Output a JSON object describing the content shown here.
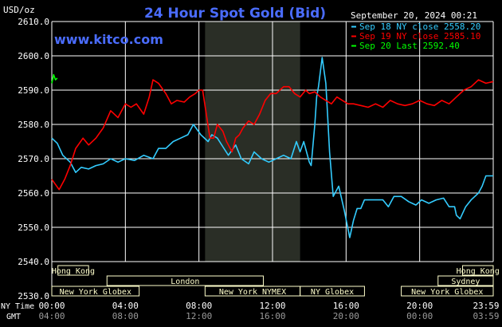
{
  "header": {
    "unit": "USD/oz",
    "title": "24 Hour Spot Gold (Bid)",
    "date": "September 20, 2024 00:21",
    "website": "www.kitco.com"
  },
  "legend": {
    "position": "top-right",
    "items": [
      {
        "label": "Sep 18 NY close 2558.20",
        "color": "#33ccff"
      },
      {
        "label": "Sep 19 NY close 2585.10",
        "color": "#ff0000"
      },
      {
        "label": "Sep 20 Last 2592.40",
        "color": "#00ff00"
      }
    ]
  },
  "markets": [
    {
      "name": "Hong Kong",
      "row": 0,
      "start": 0.333,
      "end": 2.0
    },
    {
      "name": "Hong Kong",
      "row": 0,
      "start": 22.333,
      "end": 24.0
    },
    {
      "name": "London",
      "row": 1,
      "start": 3.0,
      "end": 11.5
    },
    {
      "name": "Sydney",
      "row": 1,
      "start": 21.0,
      "end": 24.0
    },
    {
      "name": "New York Globex",
      "row": 2,
      "start": 0.0,
      "end": 4.75
    },
    {
      "name": "New York NYMEX",
      "row": 2,
      "start": 8.333,
      "end": 13.5
    },
    {
      "name": "NY Globex",
      "row": 2,
      "start": 13.5,
      "end": 17.0
    },
    {
      "name": "New York Globex",
      "row": 2,
      "start": 19.0,
      "end": 24.0
    }
  ],
  "time_axis": {
    "ny_label": "NY Time",
    "gmt_label": "GMT",
    "ny_ticks": [
      "00:00",
      "04:00",
      "08:00",
      "12:00",
      "16:00",
      "20:00",
      "23:59"
    ],
    "gmt_ticks": [
      "04:00",
      "08:00",
      "12:00",
      "16:00",
      "20:00",
      "00:00",
      "03:59"
    ]
  },
  "colors": {
    "background": "#000000",
    "grid": "#ffffff",
    "highlight": "#2a2e26",
    "title": "#4a6cff",
    "market_box": "#ffffcc"
  },
  "chart_data": {
    "type": "line",
    "title": "24 Hour Spot Gold (Bid)",
    "xlabel": "NY Time",
    "ylabel": "USD/oz",
    "xlim": [
      0,
      24
    ],
    "ylim": [
      2530,
      2610
    ],
    "yticks": [
      2530.0,
      2540.0,
      2550.0,
      2560.0,
      2570.0,
      2580.0,
      2590.0,
      2600.0,
      2610.0
    ],
    "grid": true,
    "highlight_hours": [
      8.333,
      13.5
    ],
    "series": [
      {
        "name": "Sep 18 NY close 2558.20",
        "color": "#33ccff",
        "x": [
          0.0,
          0.3,
          0.6,
          1.0,
          1.3,
          1.6,
          2.0,
          2.4,
          2.8,
          3.2,
          3.6,
          4.0,
          4.5,
          5.0,
          5.5,
          5.8,
          6.2,
          6.6,
          7.0,
          7.4,
          7.7,
          8.1,
          8.5,
          8.7,
          9.0,
          9.3,
          9.6,
          10.0,
          10.3,
          10.7,
          11.0,
          11.4,
          11.8,
          12.2,
          12.6,
          13.0,
          13.3,
          13.5,
          13.7,
          14.0,
          14.1,
          14.3,
          14.4,
          14.5,
          14.7,
          14.9,
          15.0,
          15.1,
          15.3,
          15.6,
          15.9,
          16.2,
          16.4,
          16.6,
          16.8,
          17.0,
          17.3,
          17.6,
          18.0,
          18.3,
          18.6,
          19.0,
          19.4,
          19.8,
          20.1,
          20.5,
          20.9,
          21.3,
          21.6,
          21.9,
          22.0,
          22.2,
          22.5,
          22.8,
          23.0,
          23.2,
          23.4,
          23.6,
          23.8,
          24.0
        ],
        "values": [
          2576,
          2574.5,
          2571,
          2569,
          2566,
          2567.5,
          2567,
          2568,
          2568.5,
          2570,
          2569,
          2570,
          2569.5,
          2571,
          2570,
          2573,
          2573,
          2575,
          2576,
          2577,
          2580,
          2577,
          2575,
          2577,
          2576,
          2573.5,
          2571,
          2574,
          2570,
          2568.5,
          2572,
          2570,
          2569,
          2570,
          2571,
          2570,
          2575,
          2572,
          2575,
          2569,
          2568,
          2580,
          2588,
          2591,
          2599.5,
          2592,
          2582,
          2572,
          2559,
          2562,
          2555,
          2547,
          2552,
          2555.5,
          2555.5,
          2558,
          2558,
          2558,
          2558,
          2556,
          2559,
          2559,
          2557.5,
          2556.5,
          2558,
          2557,
          2558,
          2558.5,
          2556,
          2556,
          2553.5,
          2552.5,
          2556,
          2558,
          2559,
          2560,
          2562,
          2565,
          2565,
          2565
        ]
      },
      {
        "name": "Sep 19 NY close 2585.10",
        "color": "#ff0000",
        "x": [
          0.0,
          0.4,
          0.7,
          1.0,
          1.3,
          1.7,
          2.0,
          2.4,
          2.8,
          3.2,
          3.6,
          4.0,
          4.3,
          4.6,
          5.0,
          5.3,
          5.5,
          5.8,
          6.2,
          6.5,
          6.8,
          7.2,
          7.5,
          7.8,
          8.0,
          8.2,
          8.4,
          8.6,
          8.8,
          9.0,
          9.3,
          9.5,
          9.8,
          10.0,
          10.2,
          10.4,
          10.7,
          11.0,
          11.3,
          11.6,
          11.9,
          12.2,
          12.6,
          12.9,
          13.2,
          13.5,
          13.8,
          14.0,
          14.3,
          14.6,
          14.9,
          15.2,
          15.5,
          15.8,
          16.1,
          16.4,
          16.8,
          17.2,
          17.6,
          18.0,
          18.4,
          18.8,
          19.2,
          19.6,
          20.0,
          20.4,
          20.8,
          21.2,
          21.6,
          22.0,
          22.4,
          22.8,
          23.2,
          23.6,
          24.0
        ],
        "values": [
          2564,
          2561,
          2564,
          2568,
          2573,
          2576,
          2574,
          2576,
          2579,
          2584,
          2582,
          2586,
          2585,
          2586,
          2583,
          2588,
          2593,
          2592,
          2589,
          2586,
          2587,
          2586.5,
          2588,
          2589,
          2590,
          2590,
          2583,
          2576,
          2576,
          2580,
          2578,
          2575,
          2572,
          2576,
          2577,
          2579,
          2581,
          2580,
          2583,
          2587,
          2589,
          2589,
          2591,
          2591,
          2589,
          2588,
          2590,
          2589,
          2589.5,
          2588,
          2587,
          2586,
          2588,
          2587,
          2586,
          2586,
          2585.5,
          2585,
          2586,
          2585,
          2587,
          2586,
          2585.5,
          2586,
          2587,
          2586,
          2585.5,
          2587,
          2586,
          2588,
          2590,
          2591,
          2593,
          2592,
          2592.5
        ]
      },
      {
        "name": "Sep 20 Last 2592.40",
        "color": "#00ff00",
        "x": [
          0.0,
          0.1,
          0.2,
          0.3
        ],
        "values": [
          2592,
          2594.5,
          2593,
          2593.5
        ]
      }
    ]
  }
}
